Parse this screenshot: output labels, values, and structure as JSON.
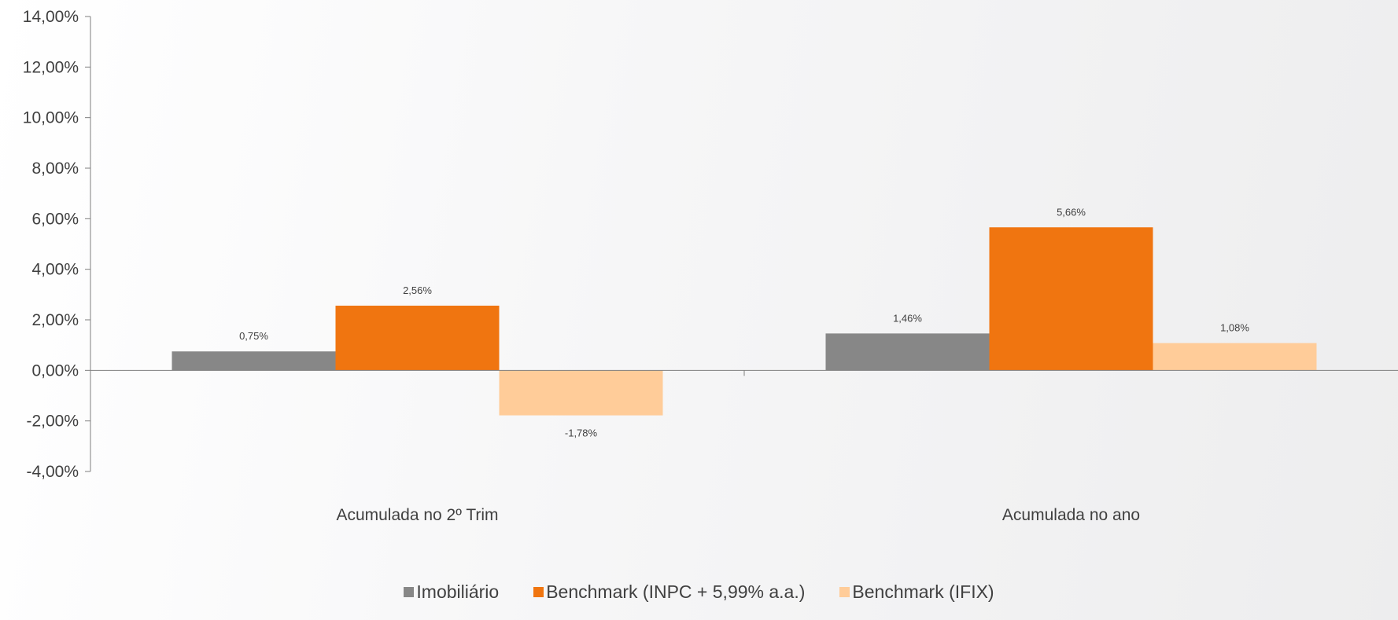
{
  "chart_data": {
    "type": "bar",
    "categories": [
      "Acumulada no 2º Trim",
      "Acumulada no ano"
    ],
    "series": [
      {
        "name": "Imobiliário",
        "values": [
          0.75,
          1.46
        ],
        "labels": [
          "0,75%",
          "1,46%"
        ],
        "color": "#878787"
      },
      {
        "name": "Benchmark (INPC + 5,99% a.a.)",
        "values": [
          2.56,
          5.66
        ],
        "labels": [
          "2,56%",
          "5,66%"
        ],
        "color": "#f07510"
      },
      {
        "name": "Benchmark (IFIX)",
        "values": [
          -1.78,
          1.08
        ],
        "labels": [
          "-1,78%",
          "1,08%"
        ],
        "color": "#ffcc99"
      }
    ],
    "ylim": [
      -4,
      14
    ],
    "yticks": [
      -4,
      -2,
      0,
      2,
      4,
      6,
      8,
      10,
      12,
      14
    ],
    "ytick_labels": [
      "-4,00%",
      "-2,00%",
      "0,00%",
      "2,00%",
      "4,00%",
      "6,00%",
      "8,00%",
      "10,00%",
      "12,00%",
      "14,00%"
    ],
    "title": "",
    "xlabel": "",
    "ylabel": "",
    "legend_position": "bottom",
    "grid": false
  }
}
